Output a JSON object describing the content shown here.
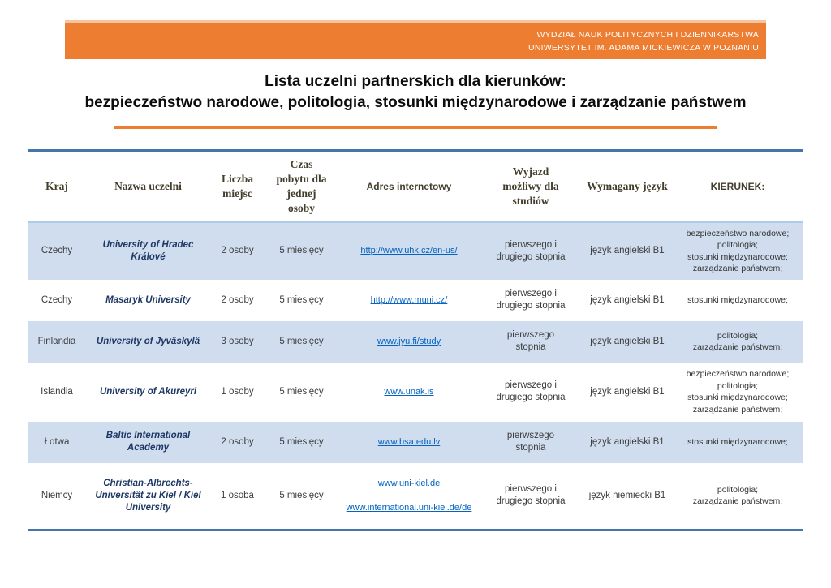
{
  "banner": {
    "line1": "WYDZIAŁ NAUK POLITYCZNYCH I DZIENNIKARSTWA",
    "line2": "UNIWERSYTET IM. ADAMA MICKIEWICZA W POZNANIU"
  },
  "title": {
    "line1": "Lista uczelni partnerskich dla kierunków:",
    "line2": "bezpieczeństwo narodowe, politologia, stosunki międzynarodowe i zarządzanie państwem"
  },
  "colors": {
    "accent_orange": "#ED7D31",
    "table_border_blue": "#4476AC",
    "row_stripe_blue": "#CFDDEE",
    "university_navy": "#1F3864",
    "link_blue": "#0563C1",
    "header_text_brown": "#433D2C"
  },
  "table": {
    "columns": [
      "Kraj",
      "Nazwa uczelni",
      "Liczba\nmiejsc",
      "Czas\npobytu dla\njednej\nosoby",
      "Adres internetowy",
      "Wyjazd\nmożliwy dla\nstudiów",
      "Wymagany język",
      "KIERUNEK:"
    ],
    "rows": [
      {
        "kraj": "Czechy",
        "uczelnia": "University of Hradec Králové",
        "miejsca": "2 osoby",
        "czas": "5 miesięcy",
        "link1": "http://www.uhk.cz/en-us/",
        "wyjazd": "pierwszego i\ndrugiego stopnia",
        "jezyk": "język angielski B1",
        "kierunek": "bezpieczeństwo narodowe;\npolitologia;\nstosunki międzynarodowe;\nzarządzanie państwem;"
      },
      {
        "kraj": "Czechy",
        "uczelnia": "Masaryk University",
        "miejsca": "2 osoby",
        "czas": "5 miesięcy",
        "link1": "http://www.muni.cz/",
        "wyjazd": "pierwszego i\ndrugiego stopnia",
        "jezyk": "język angielski B1",
        "kierunek": "stosunki międzynarodowe;"
      },
      {
        "kraj": "Finlandia",
        "uczelnia": "University of Jyväskylä",
        "miejsca": "3 osoby",
        "czas": "5 miesięcy",
        "link1": "www.jyu.fi/study",
        "wyjazd": "pierwszego\nstopnia",
        "jezyk": "język angielski B1",
        "kierunek": "politologia;\nzarządzanie państwem;"
      },
      {
        "kraj": "Islandia",
        "uczelnia": "University of Akureyri",
        "miejsca": "1 osoby",
        "czas": "5 miesięcy",
        "link1": "www.unak.is",
        "wyjazd": "pierwszego i\ndrugiego stopnia",
        "jezyk": "język angielski B1",
        "kierunek": "bezpieczeństwo narodowe;\npolitologia;\nstosunki międzynarodowe;\nzarządzanie państwem;"
      },
      {
        "kraj": "Łotwa",
        "uczelnia": "Baltic International Academy",
        "miejsca": "2 osoby",
        "czas": "5 miesięcy",
        "link1": "www.bsa.edu.lv",
        "wyjazd": "pierwszego\nstopnia",
        "jezyk": "język angielski B1",
        "kierunek": "stosunki międzynarodowe;"
      },
      {
        "kraj": "Niemcy",
        "uczelnia": "Christian-Albrechts-Universität zu Kiel / Kiel University",
        "miejsca": "1 osoba",
        "czas": "5 miesięcy",
        "link1": "www.uni-kiel.de",
        "link2": "www.international.uni-kiel.de/de",
        "wyjazd": "pierwszego i\ndrugiego stopnia",
        "jezyk": "język niemiecki B1",
        "kierunek": "politologia;\nzarządzanie państwem;"
      }
    ]
  }
}
